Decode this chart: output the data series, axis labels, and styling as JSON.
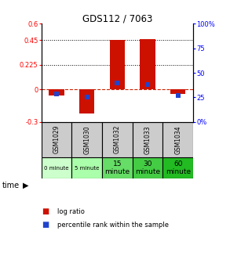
{
  "title": "GDS112 / 7063",
  "samples": [
    "GSM1029",
    "GSM1030",
    "GSM1032",
    "GSM1033",
    "GSM1034"
  ],
  "time_labels": [
    "0 minute",
    "5 minute",
    "15\nminute",
    "30\nminute",
    "60\nminute"
  ],
  "time_colors": [
    "#ccffcc",
    "#aaffaa",
    "#66dd66",
    "#44cc44",
    "#22bb22"
  ],
  "log_ratios": [
    -0.055,
    -0.225,
    0.45,
    0.462,
    -0.042
  ],
  "percentile_ranks": [
    0.285,
    0.252,
    0.395,
    0.385,
    0.272
  ],
  "left_ylim": [
    -0.3,
    0.6
  ],
  "right_ylim": [
    0.0,
    1.0
  ],
  "left_yticks": [
    -0.3,
    0.0,
    0.225,
    0.45,
    0.6
  ],
  "left_yticklabels": [
    "-0.3",
    "0",
    "0.225",
    "0.45",
    "0.6"
  ],
  "right_yticks": [
    0.0,
    0.25,
    0.5,
    0.75,
    1.0
  ],
  "right_yticklabels": [
    "0%",
    "25",
    "50",
    "75",
    "100%"
  ],
  "dotted_lines": [
    0.45,
    0.225
  ],
  "bar_color": "#cc1100",
  "blue_color": "#2244cc",
  "zero_line_color": "#cc2200",
  "bg_color": "#ffffff",
  "plot_bg": "#ffffff",
  "legend_log_ratio": "log ratio",
  "legend_percentile": "percentile rank within the sample",
  "sample_bg": "#cccccc"
}
